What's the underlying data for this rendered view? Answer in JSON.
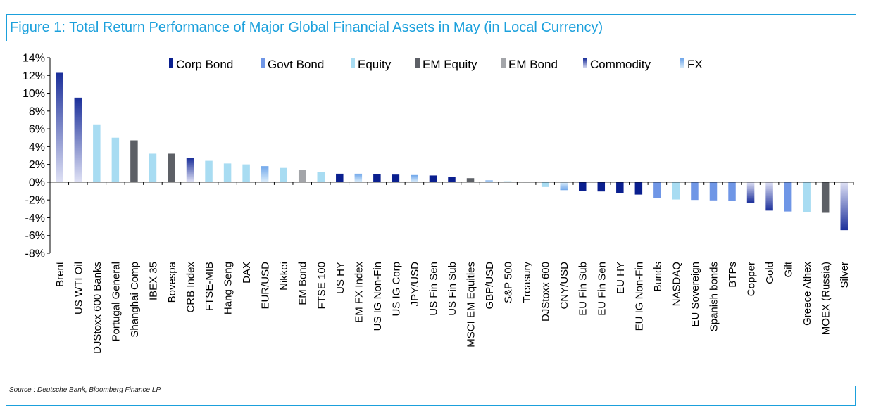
{
  "title": "Figure 1: Total Return Performance of Major Global Financial Assets in May (in Local Currency)",
  "source": "Source : Deutsche Bank, Bloomberg Finance LP",
  "colors": {
    "corp_bond": "#0a1f8f",
    "govt_bond": "#6f96e6",
    "equity": "#a8dcf2",
    "em_equity": "#5d6066",
    "em_bond": "#a3a5a9",
    "commodity_top": "#1b2f9a",
    "commodity_bottom": "#dfe1f5",
    "fx_top": "#6fa6ea",
    "fx_bottom": "#dceefb",
    "accent": "#1ba0dc"
  },
  "chart_data": {
    "type": "bar",
    "title": "Figure 1: Total Return Performance of Major Global Financial Assets in May (in Local Currency)",
    "xlabel": "",
    "ylabel": "",
    "ylim": [
      -8,
      14
    ],
    "yticks": [
      14,
      12,
      10,
      8,
      6,
      4,
      2,
      0,
      -2,
      -4,
      -6,
      -8
    ],
    "ytick_labels": [
      "14%",
      "12%",
      "10%",
      "8%",
      "6%",
      "4%",
      "2%",
      "0%",
      "-2%",
      "-4%",
      "-6%",
      "-8%"
    ],
    "grid": false,
    "legend_position": "top",
    "legend": [
      {
        "key": "corp_bond",
        "label": "Corp Bond"
      },
      {
        "key": "govt_bond",
        "label": "Govt Bond"
      },
      {
        "key": "equity",
        "label": "Equity"
      },
      {
        "key": "em_equity",
        "label": "EM Equity"
      },
      {
        "key": "em_bond",
        "label": "EM Bond"
      },
      {
        "key": "commodity",
        "label": "Commodity"
      },
      {
        "key": "fx",
        "label": "FX"
      }
    ],
    "categories": [
      "Brent",
      "US WTI Oil",
      "DJStoxx 600 Banks",
      "Portugal General",
      "Shanghai Comp",
      "IBEX 35",
      "Bovespa",
      "CRB Index",
      "FTSE-MIB",
      "Hang Seng",
      "DAX",
      "EUR/USD",
      "Nikkei",
      "EM Bond",
      "FTSE 100",
      "US HY",
      "EM FX Index",
      "US IG Non-Fin",
      "US IG Corp",
      "JPY/USD",
      "US Fin Sen",
      "US Fin Sub",
      "MSCI EM Equities",
      "GBP/USD",
      "S&P 500",
      "Treasury",
      "DJStoxx 600",
      "CNY/USD",
      "EU Fin Sub",
      "EU Fin Sen",
      "EU HY",
      "EU IG Non-Fin",
      "Bunds",
      "NASDAQ",
      "EU Sovereign",
      "Spanish bonds",
      "BTPs",
      "Copper",
      "Gold",
      "Gilt",
      "Greece Athex",
      "MOEX (Russia)",
      "Silver"
    ],
    "values": [
      12.3,
      9.5,
      6.5,
      5.0,
      4.7,
      3.2,
      3.2,
      2.7,
      2.4,
      2.1,
      2.0,
      1.8,
      1.6,
      1.4,
      1.1,
      0.95,
      0.95,
      0.9,
      0.85,
      0.8,
      0.75,
      0.55,
      0.45,
      0.2,
      0.1,
      0.05,
      -0.55,
      -0.9,
      -1.0,
      -1.05,
      -1.2,
      -1.4,
      -1.75,
      -1.95,
      -2.0,
      -2.05,
      -2.1,
      -2.3,
      -3.2,
      -3.3,
      -3.4,
      -3.45,
      -5.4
    ],
    "kinds": [
      "commodity",
      "commodity",
      "equity",
      "equity",
      "em_equity",
      "equity",
      "em_equity",
      "commodity",
      "equity",
      "equity",
      "equity",
      "fx",
      "equity",
      "em_bond",
      "equity",
      "corp_bond",
      "fx",
      "corp_bond",
      "corp_bond",
      "fx",
      "corp_bond",
      "corp_bond",
      "em_equity",
      "fx",
      "equity",
      "govt_bond",
      "equity",
      "fx",
      "corp_bond",
      "corp_bond",
      "corp_bond",
      "corp_bond",
      "govt_bond",
      "equity",
      "govt_bond",
      "govt_bond",
      "govt_bond",
      "commodity",
      "commodity",
      "govt_bond",
      "equity",
      "em_equity",
      "commodity"
    ]
  }
}
